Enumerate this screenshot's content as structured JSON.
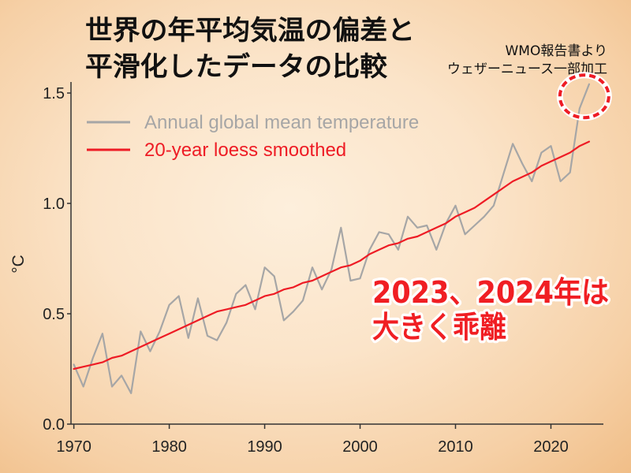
{
  "chart_data": {
    "type": "line",
    "title_lines": [
      "世界の年平均気温の偏差と",
      "平滑化したデータの比較"
    ],
    "source_note_lines": [
      "WMO報告書より",
      "ウェザーニュース一部加工"
    ],
    "ylabel": "°C",
    "xlim": [
      1969.7,
      2025.5
    ],
    "ylim": [
      0,
      1.55
    ],
    "xticks": [
      1970,
      1980,
      1990,
      2000,
      2010,
      2020
    ],
    "xtick_labels": [
      "1970",
      "1980",
      "1990",
      "2000",
      "2010",
      "2020"
    ],
    "yticks": [
      0,
      0.5,
      1.0,
      1.5
    ],
    "ytick_labels": [
      "0.0",
      "0.5",
      "1.0",
      "1.5"
    ],
    "grid": false,
    "legend": "top-left",
    "x": [
      1970,
      1971,
      1972,
      1973,
      1974,
      1975,
      1976,
      1977,
      1978,
      1979,
      1980,
      1981,
      1982,
      1983,
      1984,
      1985,
      1986,
      1987,
      1988,
      1989,
      1990,
      1991,
      1992,
      1993,
      1994,
      1995,
      1996,
      1997,
      1998,
      1999,
      2000,
      2001,
      2002,
      2003,
      2004,
      2005,
      2006,
      2007,
      2008,
      2009,
      2010,
      2011,
      2012,
      2013,
      2014,
      2015,
      2016,
      2017,
      2018,
      2019,
      2020,
      2021,
      2022,
      2023,
      2024
    ],
    "series": [
      {
        "name": "Annual global mean temperature",
        "color": "#a6a6a6",
        "values": [
          0.27,
          0.17,
          0.3,
          0.41,
          0.17,
          0.22,
          0.14,
          0.42,
          0.33,
          0.42,
          0.54,
          0.58,
          0.39,
          0.57,
          0.4,
          0.38,
          0.46,
          0.59,
          0.63,
          0.52,
          0.71,
          0.67,
          0.47,
          0.51,
          0.56,
          0.71,
          0.61,
          0.7,
          0.89,
          0.65,
          0.66,
          0.79,
          0.87,
          0.86,
          0.79,
          0.94,
          0.89,
          0.9,
          0.79,
          0.91,
          0.99,
          0.86,
          0.9,
          0.94,
          0.99,
          1.13,
          1.27,
          1.18,
          1.1,
          1.23,
          1.26,
          1.1,
          1.14,
          1.43,
          1.54
        ]
      },
      {
        "name": "20-year loess smoothed",
        "color": "#ee1c25",
        "values": [
          0.25,
          0.26,
          0.27,
          0.28,
          0.3,
          0.31,
          0.33,
          0.35,
          0.37,
          0.39,
          0.41,
          0.43,
          0.45,
          0.47,
          0.49,
          0.51,
          0.52,
          0.53,
          0.54,
          0.56,
          0.58,
          0.59,
          0.61,
          0.62,
          0.64,
          0.65,
          0.67,
          0.69,
          0.71,
          0.72,
          0.74,
          0.77,
          0.79,
          0.81,
          0.82,
          0.84,
          0.85,
          0.87,
          0.89,
          0.91,
          0.94,
          0.96,
          0.98,
          1.01,
          1.04,
          1.07,
          1.1,
          1.12,
          1.14,
          1.17,
          1.19,
          1.21,
          1.23,
          1.26,
          1.28
        ]
      }
    ],
    "annotations": {
      "callout_lines": [
        "2023、2024年は",
        "大きく乖離"
      ],
      "callout_color": "#f01e23",
      "highlight_years": [
        2023,
        2024
      ],
      "highlight_color": "#ee1c25"
    }
  },
  "colors": {
    "axis": "#333333",
    "title": "#111111"
  }
}
